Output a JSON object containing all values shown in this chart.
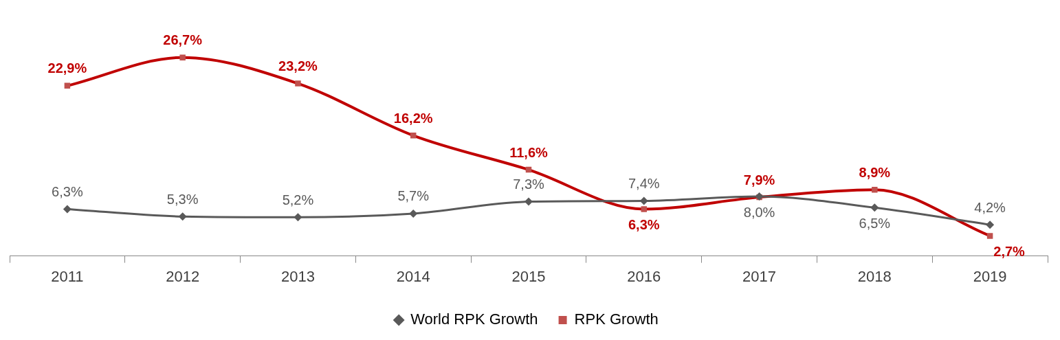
{
  "chart_data": {
    "type": "line",
    "categories": [
      "2011",
      "2012",
      "2013",
      "2014",
      "2015",
      "2016",
      "2017",
      "2018",
      "2019"
    ],
    "series": [
      {
        "name": "World RPK Growth",
        "color": "#595959",
        "marker": "diamond",
        "values": [
          6.3,
          5.3,
          5.2,
          5.7,
          7.3,
          7.4,
          8.0,
          6.5,
          4.2
        ],
        "value_labels": [
          "6,3%",
          "5,3%",
          "5,2%",
          "5,7%",
          "7,3%",
          "7,4%",
          "8,0%",
          "6,5%",
          "4,2%"
        ]
      },
      {
        "name": "RPK Growth",
        "color": "#c00000",
        "marker": "square",
        "values": [
          22.9,
          26.7,
          23.2,
          16.2,
          11.6,
          6.3,
          7.9,
          8.9,
          2.7
        ],
        "value_labels": [
          "22,9%",
          "26,7%",
          "23,2%",
          "16,2%",
          "11,6%",
          "6,3%",
          "7,9%",
          "8,9%",
          "2,7%"
        ]
      }
    ],
    "legend": "bottom",
    "grid": false
  }
}
